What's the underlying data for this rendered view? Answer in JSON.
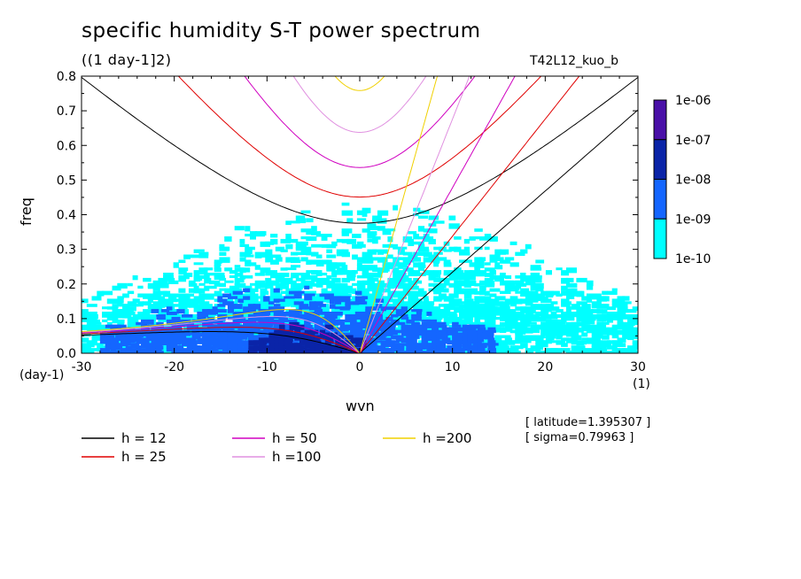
{
  "header": {
    "title": "specific humidity S-T power spectrum",
    "units": "((1 day-1]2)",
    "run_id": "T42L12_kuo_b"
  },
  "info": {
    "latitude": "[ latitude=1.395307 ]",
    "sigma": "[ sigma=0.79963 ]"
  },
  "chart_data": {
    "type": "heatmap",
    "xlabel": "wvn",
    "ylabel": "freq",
    "x_unit_label": "(1)",
    "y_unit_label": "(day-1)",
    "xlim": [
      -30,
      30
    ],
    "ylim": [
      0,
      0.8
    ],
    "x_ticks": [
      "-30",
      "-20",
      "-10",
      "0",
      "10",
      "20",
      "30"
    ],
    "y_ticks": [
      "0.0",
      "0.1",
      "0.2",
      "0.3",
      "0.4",
      "0.5",
      "0.6",
      "0.7",
      "0.8"
    ],
    "colorbar": {
      "levels": [
        "1e-06",
        "1e-07",
        "1e-08",
        "1e-09",
        "1e-10"
      ],
      "colors": [
        "#4a10a8",
        "#0a24a8",
        "#1466ff",
        "#00ffff"
      ]
    },
    "dispersion_curves": [
      {
        "name": "h = 12",
        "color": "#000000"
      },
      {
        "name": "h = 25",
        "color": "#e00000"
      },
      {
        "name": "h = 50",
        "color": "#d000c0"
      },
      {
        "name": "h =100",
        "color": "#e090e0"
      },
      {
        "name": "h =200",
        "color": "#f0d000"
      }
    ],
    "spectral_regions": [
      {
        "level": "1e-10",
        "color": "#00ffff",
        "x_range": [
          -30,
          30
        ],
        "y_range": [
          0,
          0.45
        ],
        "peak_y": 0.1
      },
      {
        "level": "1e-09",
        "color": "#1466ff",
        "x_range": [
          -28,
          14
        ],
        "y_range": [
          0,
          0.2
        ],
        "peak_y": 0.05
      },
      {
        "level": "1e-08",
        "color": "#0a24a8",
        "x_range": [
          -12,
          0
        ],
        "y_range": [
          0,
          0.09
        ],
        "peak_y": 0.04
      }
    ]
  }
}
